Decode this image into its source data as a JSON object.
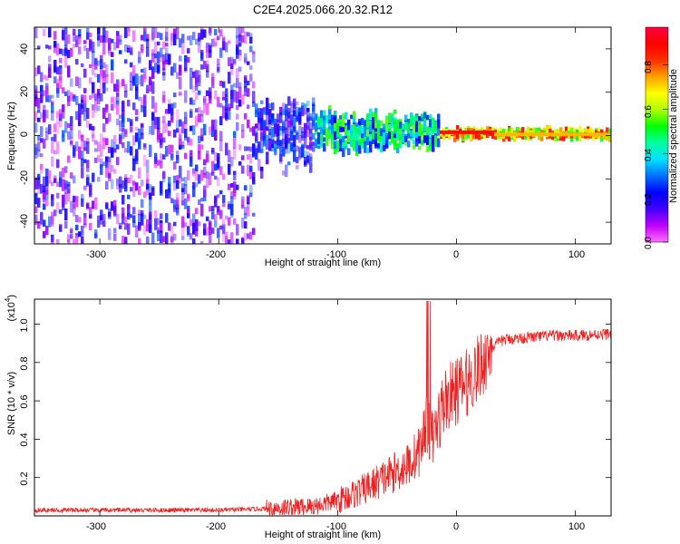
{
  "title": "C2E4.2025.066.20.32.R12",
  "chart_data": [
    {
      "type": "heatmap",
      "xlabel": "Height of straight line (km)",
      "ylabel": "Frequency (Hz)",
      "xlim": [
        -355,
        130
      ],
      "ylim": [
        -50,
        50
      ],
      "xticks": [
        -300,
        -200,
        -100,
        0,
        100
      ],
      "yticks": [
        -40,
        -20,
        0,
        20,
        40
      ],
      "colorbar": {
        "label": "Normalized spectral amplitude",
        "ticks": [
          "0.0",
          "0.2",
          "0.4",
          "0.6",
          "0.8"
        ],
        "range": [
          0,
          0.97
        ],
        "colors": [
          "#ff6cff",
          "#c000ff",
          "#4000ff",
          "#0000ff",
          "#0070ff",
          "#00e0ff",
          "#00ffa0",
          "#00ff00",
          "#b0ff00",
          "#ffff00",
          "#ffa000",
          "#ff3000",
          "#ff0000",
          "#ff0040"
        ]
      },
      "description_bands": [
        {
          "x_from": -355,
          "x_to": -170,
          "freq_spread": 50,
          "amplitude": [
            0.0,
            0.3
          ]
        },
        {
          "x_from": -170,
          "x_to": -120,
          "freq_spread": 20,
          "amplitude": [
            0.1,
            0.35
          ]
        },
        {
          "x_from": -120,
          "x_to": -15,
          "freq_spread": 10,
          "amplitude": [
            0.2,
            0.6
          ]
        },
        {
          "x_from": -15,
          "x_to": 130,
          "freq_spread": 3,
          "amplitude": [
            0.5,
            0.95
          ]
        }
      ],
      "grid": false
    },
    {
      "type": "line",
      "xlabel": "Height of straight line (km)",
      "ylabel": "SNR (10 * v/v)",
      "yscale_label": "(x10",
      "yscale_exp": "4",
      "xlim": [
        -355,
        130
      ],
      "ylim": [
        0,
        1.13
      ],
      "xticks": [
        -300,
        -200,
        -100,
        0,
        100
      ],
      "yticks": [
        "0.2",
        "0.4",
        "0.6",
        "0.8",
        "1.0"
      ],
      "line_color": "#ee2222",
      "series": [
        {
          "x": [
            -355,
            -300,
            -250,
            -200,
            -170,
            -150,
            -120,
            -100,
            -80,
            -60,
            -40,
            -30,
            -25,
            -20,
            -15,
            -10,
            0,
            10,
            20,
            30,
            40,
            60,
            80,
            100,
            130
          ],
          "y": [
            0.03,
            0.03,
            0.03,
            0.03,
            0.035,
            0.04,
            0.05,
            0.08,
            0.13,
            0.2,
            0.27,
            0.35,
            0.5,
            0.4,
            0.5,
            0.6,
            0.65,
            0.7,
            0.78,
            0.88,
            0.92,
            0.93,
            0.94,
            0.94,
            0.95
          ]
        }
      ],
      "grid": false
    }
  ],
  "labels": {
    "x_ticks": [
      "-300",
      "-200",
      "-100",
      "0",
      "100"
    ],
    "top_y_ticks": [
      "40",
      "20",
      "0",
      "-20",
      "-40"
    ],
    "bottom_y_ticks": [
      "1.0",
      "0.8",
      "0.6",
      "0.4",
      "0.2"
    ],
    "top_xlabel": "Height of straight line (km)",
    "top_ylabel": "Frequency (Hz)",
    "bottom_xlabel": "Height of straight line (km)",
    "bottom_ylabel": "SNR (10 * v/v)",
    "scale_prefix": "(x10",
    "scale_exp": "4",
    "scale_suffix": ")",
    "colorbar_label": "Normalized spectral amplitude",
    "colorbar_ticks": [
      "0.0",
      "0.2",
      "0.4",
      "0.6",
      "0.8"
    ]
  }
}
